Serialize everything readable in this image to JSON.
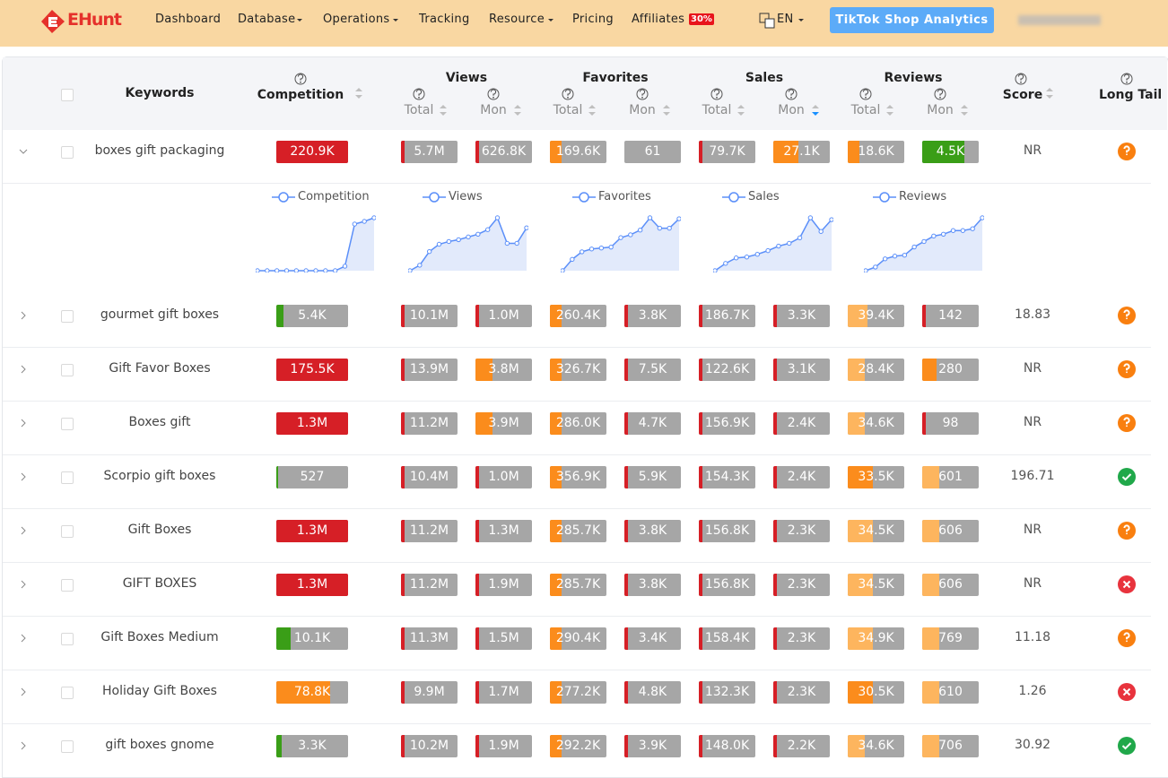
{
  "nav": {
    "logo": "EHunt",
    "items": [
      "Dashboard",
      "Database",
      "Operations",
      "Tracking",
      "Resource",
      "Pricing",
      "Affiliates"
    ],
    "badge": "30%",
    "language": "EN",
    "button": "TikTok Shop Analytics"
  },
  "table": {
    "columns": {
      "keywords": "Keywords",
      "competition": "Competition",
      "groups": [
        "Views",
        "Favorites",
        "Sales",
        "Reviews"
      ],
      "total": "Total",
      "mon": "Mon",
      "score": "Score",
      "long_tail": "Long Tail"
    },
    "rows": [
      {
        "keyword": "boxes gift packaging",
        "cells": [
          [
            "220.9K",
            100,
            "#d61f26"
          ],
          [
            "5.7M",
            6,
            "#d61f26"
          ],
          [
            "626.8K",
            6,
            "#d61f26"
          ],
          [
            "169.6K",
            20,
            "#fb8c1c"
          ],
          [
            "61",
            0,
            "#a6a6a6"
          ],
          [
            "79.7K",
            6,
            "#d61f26"
          ],
          [
            "27.1K",
            45,
            "#fb8c1c"
          ],
          [
            "18.6K",
            20,
            "#fb8c1c"
          ],
          [
            "4.5K",
            75,
            "#3a9e17"
          ]
        ],
        "score": "NR",
        "long_tail": "question"
      },
      {
        "keyword": "gourmet gift boxes",
        "cells": [
          [
            "5.4K",
            10,
            "#3a9e17"
          ],
          [
            "10.1M",
            6,
            "#d61f26"
          ],
          [
            "1.0M",
            6,
            "#d61f26"
          ],
          [
            "260.4K",
            20,
            "#fb8c1c"
          ],
          [
            "3.8K",
            6,
            "#d61f26"
          ],
          [
            "186.7K",
            6,
            "#d61f26"
          ],
          [
            "3.3K",
            6,
            "#d61f26"
          ],
          [
            "39.4K",
            35,
            "#fdb55e"
          ],
          [
            "142",
            6,
            "#d61f26"
          ]
        ],
        "score": 18.83,
        "long_tail": "question"
      },
      {
        "keyword": "Gift Favor Boxes",
        "cells": [
          [
            "175.5K",
            100,
            "#d61f26"
          ],
          [
            "13.9M",
            6,
            "#d61f26"
          ],
          [
            "3.8M",
            30,
            "#fb8c1c"
          ],
          [
            "326.7K",
            20,
            "#fb8c1c"
          ],
          [
            "7.5K",
            6,
            "#d61f26"
          ],
          [
            "122.6K",
            6,
            "#d61f26"
          ],
          [
            "3.1K",
            6,
            "#d61f26"
          ],
          [
            "28.4K",
            30,
            "#fdb55e"
          ],
          [
            "280",
            25,
            "#fb8c1c"
          ]
        ],
        "score": "NR",
        "long_tail": "question"
      },
      {
        "keyword": "Boxes gift",
        "cells": [
          [
            "1.3M",
            100,
            "#d61f26"
          ],
          [
            "11.2M",
            6,
            "#d61f26"
          ],
          [
            "3.9M",
            30,
            "#fb8c1c"
          ],
          [
            "286.0K",
            20,
            "#fb8c1c"
          ],
          [
            "4.7K",
            6,
            "#d61f26"
          ],
          [
            "156.9K",
            6,
            "#d61f26"
          ],
          [
            "2.4K",
            6,
            "#d61f26"
          ],
          [
            "34.6K",
            30,
            "#fdb55e"
          ],
          [
            "98",
            6,
            "#d61f26"
          ]
        ],
        "score": "NR",
        "long_tail": "question"
      },
      {
        "keyword": "Scorpio gift boxes",
        "cells": [
          [
            "527",
            2,
            "#3a9e17"
          ],
          [
            "10.4M",
            6,
            "#d61f26"
          ],
          [
            "1.0M",
            6,
            "#d61f26"
          ],
          [
            "356.9K",
            20,
            "#fb8c1c"
          ],
          [
            "5.9K",
            6,
            "#d61f26"
          ],
          [
            "154.3K",
            6,
            "#d61f26"
          ],
          [
            "2.4K",
            6,
            "#d61f26"
          ],
          [
            "33.5K",
            45,
            "#fb8c1c"
          ],
          [
            "601",
            30,
            "#fdb55e"
          ]
        ],
        "score": 196.71,
        "long_tail": "check"
      },
      {
        "keyword": "Gift Boxes",
        "cells": [
          [
            "1.3M",
            100,
            "#d61f26"
          ],
          [
            "11.2M",
            6,
            "#d61f26"
          ],
          [
            "1.3M",
            6,
            "#d61f26"
          ],
          [
            "285.7K",
            20,
            "#fb8c1c"
          ],
          [
            "3.8K",
            6,
            "#d61f26"
          ],
          [
            "156.8K",
            6,
            "#d61f26"
          ],
          [
            "2.3K",
            6,
            "#d61f26"
          ],
          [
            "34.5K",
            45,
            "#fdb55e"
          ],
          [
            "606",
            30,
            "#fdb55e"
          ]
        ],
        "score": "NR",
        "long_tail": "question"
      },
      {
        "keyword": "GIFT BOXES",
        "cells": [
          [
            "1.3M",
            100,
            "#d61f26"
          ],
          [
            "11.2M",
            6,
            "#d61f26"
          ],
          [
            "1.9M",
            6,
            "#d61f26"
          ],
          [
            "285.7K",
            20,
            "#fb8c1c"
          ],
          [
            "3.8K",
            6,
            "#d61f26"
          ],
          [
            "156.8K",
            6,
            "#d61f26"
          ],
          [
            "2.3K",
            6,
            "#d61f26"
          ],
          [
            "34.5K",
            45,
            "#fdb55e"
          ],
          [
            "606",
            30,
            "#fdb55e"
          ]
        ],
        "score": "NR",
        "long_tail": "cross"
      },
      {
        "keyword": "Gift Boxes Medium",
        "cells": [
          [
            "10.1K",
            20,
            "#3a9e17"
          ],
          [
            "11.3M",
            6,
            "#d61f26"
          ],
          [
            "1.5M",
            6,
            "#d61f26"
          ],
          [
            "290.4K",
            20,
            "#fb8c1c"
          ],
          [
            "3.4K",
            6,
            "#d61f26"
          ],
          [
            "158.4K",
            6,
            "#d61f26"
          ],
          [
            "2.3K",
            6,
            "#d61f26"
          ],
          [
            "34.9K",
            45,
            "#fdb55e"
          ],
          [
            "769",
            30,
            "#fdb55e"
          ]
        ],
        "score": 11.18,
        "long_tail": "question"
      },
      {
        "keyword": "Holiday Gift Boxes",
        "cells": [
          [
            "78.8K",
            75,
            "#fb8c1c"
          ],
          [
            "9.9M",
            6,
            "#d61f26"
          ],
          [
            "1.7M",
            6,
            "#d61f26"
          ],
          [
            "277.2K",
            20,
            "#fb8c1c"
          ],
          [
            "4.8K",
            6,
            "#d61f26"
          ],
          [
            "132.3K",
            6,
            "#d61f26"
          ],
          [
            "2.3K",
            6,
            "#d61f26"
          ],
          [
            "30.5K",
            45,
            "#fb8c1c"
          ],
          [
            "610",
            30,
            "#fdb55e"
          ]
        ],
        "score": 1.26,
        "long_tail": "cross"
      },
      {
        "keyword": "gift boxes gnome",
        "cells": [
          [
            "3.3K",
            7,
            "#3a9e17"
          ],
          [
            "10.2M",
            6,
            "#d61f26"
          ],
          [
            "1.9M",
            6,
            "#d61f26"
          ],
          [
            "292.2K",
            20,
            "#fb8c1c"
          ],
          [
            "3.9K",
            6,
            "#d61f26"
          ],
          [
            "148.0K",
            6,
            "#d61f26"
          ],
          [
            "2.2K",
            6,
            "#d61f26"
          ],
          [
            "34.6K",
            30,
            "#fdb55e"
          ],
          [
            "706",
            30,
            "#fdb55e"
          ]
        ],
        "score": 30.92,
        "long_tail": "check"
      }
    ],
    "detail": {
      "charts": [
        {
          "name": "Competition",
          "color": "#5b8ff9",
          "values": [
            0,
            0,
            0,
            0,
            0,
            0,
            0,
            0,
            0,
            5,
            52,
            55,
            59
          ]
        },
        {
          "name": "Views",
          "color": "#5b8ff9",
          "values": [
            0,
            6,
            21,
            29,
            32,
            34,
            37,
            40,
            45,
            58,
            30,
            30,
            47
          ]
        },
        {
          "name": "Favorites",
          "color": "#5b8ff9",
          "values": [
            0,
            12,
            20,
            23,
            24,
            25,
            35,
            38,
            43,
            56,
            45,
            45,
            55
          ]
        },
        {
          "name": "Sales",
          "color": "#5b8ff9",
          "values": [
            0,
            8,
            14,
            15,
            18,
            22,
            27,
            30,
            36,
            58,
            43,
            56
          ]
        },
        {
          "name": "Reviews",
          "color": "#5b8ff9",
          "values": [
            0,
            4,
            13,
            16,
            17,
            26,
            32,
            38,
            40,
            44,
            44,
            46,
            58
          ]
        }
      ]
    }
  }
}
